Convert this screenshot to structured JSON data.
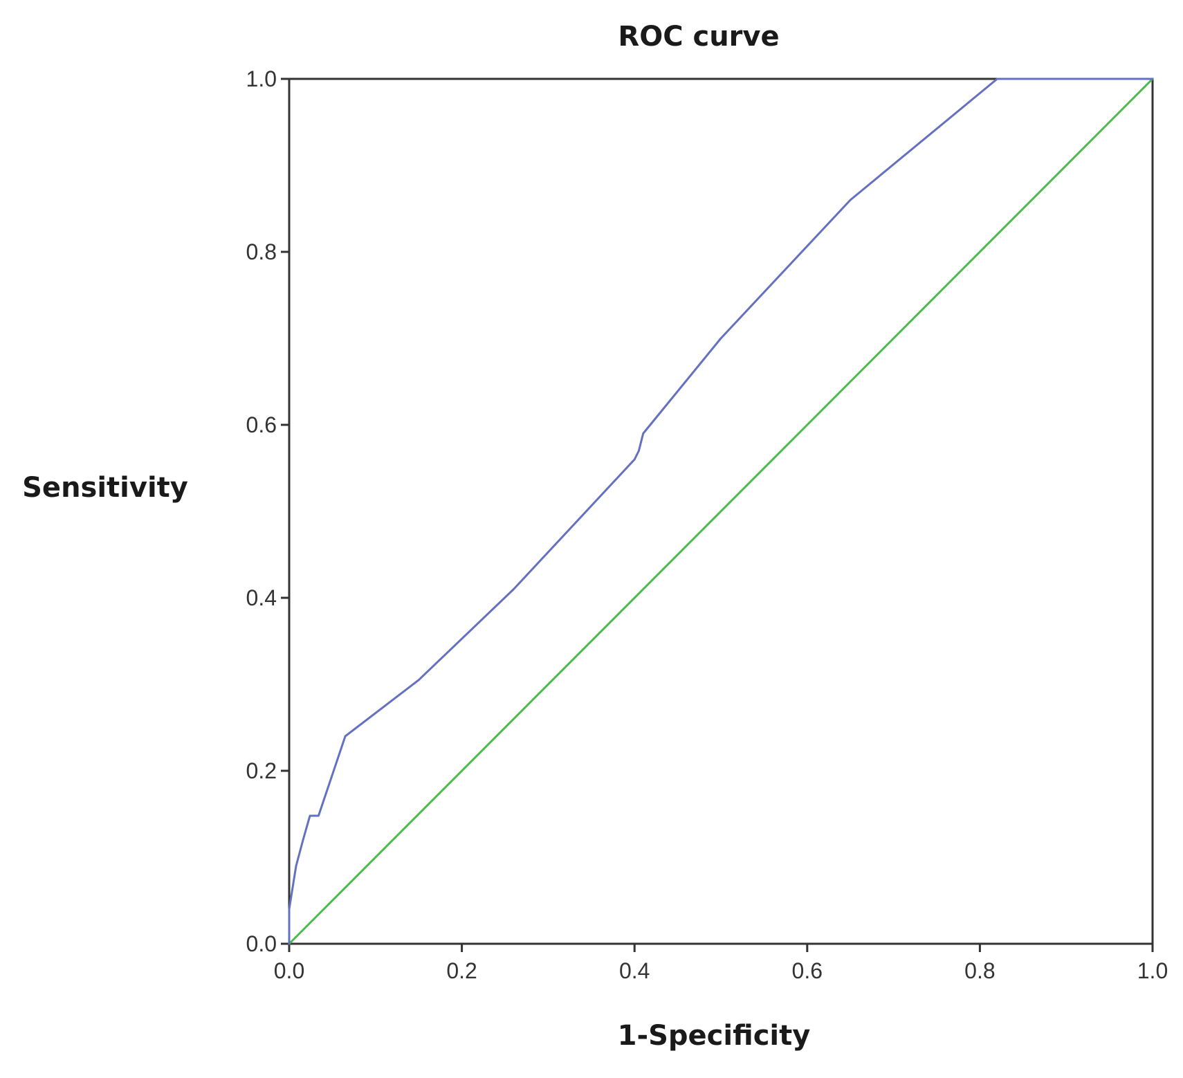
{
  "chart_data": {
    "type": "line",
    "title": "ROC curve",
    "xlabel": "1-Specificity",
    "ylabel": "Sensitivity",
    "xlim": [
      0,
      1
    ],
    "ylim": [
      0,
      1
    ],
    "x_ticks": [
      "0.0",
      "0.2",
      "0.4",
      "0.6",
      "0.8",
      "1.0"
    ],
    "y_ticks": [
      "0.0",
      "0.2",
      "0.4",
      "0.6",
      "0.8",
      "1.0"
    ],
    "grid": false,
    "series": [
      {
        "name": "ROC",
        "color": "#6470c0",
        "points": [
          [
            0.0,
            0.0
          ],
          [
            0.0,
            0.04
          ],
          [
            0.008,
            0.09
          ],
          [
            0.016,
            0.12
          ],
          [
            0.024,
            0.148
          ],
          [
            0.034,
            0.148
          ],
          [
            0.065,
            0.24
          ],
          [
            0.15,
            0.305
          ],
          [
            0.26,
            0.41
          ],
          [
            0.4,
            0.56
          ],
          [
            0.405,
            0.57
          ],
          [
            0.41,
            0.59
          ],
          [
            0.5,
            0.7
          ],
          [
            0.65,
            0.86
          ],
          [
            0.82,
            1.0
          ],
          [
            1.0,
            1.0
          ]
        ]
      },
      {
        "name": "Reference",
        "color": "#4cbb4c",
        "points": [
          [
            0.0,
            0.0
          ],
          [
            1.0,
            1.0
          ]
        ]
      }
    ]
  }
}
